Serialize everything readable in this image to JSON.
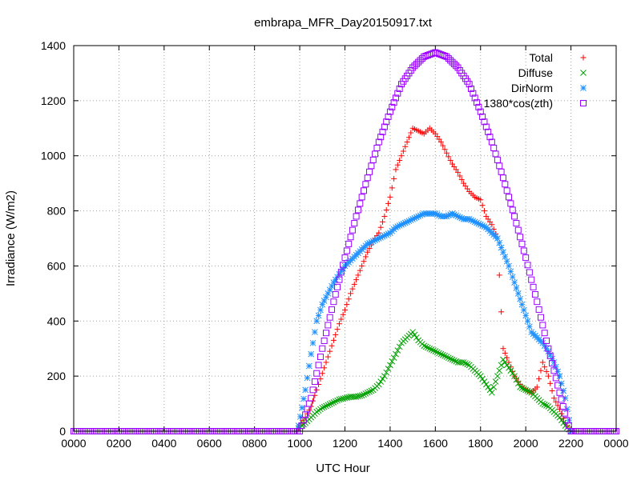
{
  "chart_data": {
    "type": "scatter",
    "title": "embrapa_MFR_Day20150917.txt",
    "xlabel": "UTC Hour",
    "ylabel": "Irradiance (W/m2)",
    "xlim": [
      0,
      24
    ],
    "ylim": [
      0,
      1400
    ],
    "grid": true,
    "legend_position": "top-right",
    "x_tick_values": [
      0,
      2,
      4,
      6,
      8,
      10,
      12,
      14,
      16,
      18,
      20,
      22,
      24
    ],
    "x_tick_labels": [
      "0000",
      "0200",
      "0400",
      "0600",
      "0800",
      "1000",
      "1200",
      "1400",
      "1600",
      "1800",
      "2000",
      "2200",
      "0000"
    ],
    "y_ticks": [
      0,
      200,
      400,
      600,
      800,
      1000,
      1200,
      1400
    ],
    "series": [
      {
        "name": "Total",
        "marker": "+",
        "color": "#ff0000",
        "x": [
          9.95,
          10.25,
          10.5,
          10.75,
          11.0,
          11.25,
          11.5,
          11.75,
          12.0,
          12.25,
          12.5,
          12.75,
          13.0,
          13.25,
          13.5,
          13.75,
          14.0,
          14.25,
          14.5,
          14.75,
          15.0,
          15.25,
          15.5,
          15.75,
          16.0,
          16.25,
          16.5,
          16.75,
          17.0,
          17.25,
          17.5,
          17.75,
          18.0,
          18.25,
          18.5,
          18.75,
          19.0,
          19.25,
          19.5,
          19.75,
          20.0,
          20.25,
          20.5,
          20.75,
          21.0,
          21.25,
          21.5,
          21.75,
          22.0
        ],
        "y": [
          10,
          50,
          90,
          150,
          210,
          270,
          330,
          390,
          440,
          500,
          550,
          600,
          650,
          690,
          720,
          780,
          850,
          950,
          1000,
          1050,
          1100,
          1090,
          1080,
          1100,
          1080,
          1050,
          1010,
          970,
          940,
          900,
          870,
          850,
          840,
          780,
          750,
          700,
          300,
          250,
          200,
          170,
          150,
          140,
          160,
          250,
          200,
          120,
          80,
          30,
          0
        ]
      },
      {
        "name": "Diffuse",
        "marker": "x",
        "color": "#00a000",
        "x": [
          9.95,
          10.25,
          10.5,
          10.75,
          11.0,
          11.25,
          11.5,
          11.75,
          12.0,
          12.25,
          12.5,
          12.75,
          13.0,
          13.25,
          13.5,
          13.75,
          14.0,
          14.25,
          14.5,
          14.75,
          15.0,
          15.25,
          15.5,
          15.75,
          16.0,
          16.25,
          16.5,
          16.75,
          17.0,
          17.25,
          17.5,
          17.75,
          18.0,
          18.25,
          18.5,
          18.75,
          19.0,
          19.25,
          19.5,
          19.75,
          20.0,
          20.25,
          20.5,
          20.75,
          21.0,
          21.25,
          21.5,
          21.75,
          22.0
        ],
        "y": [
          10,
          30,
          50,
          70,
          85,
          95,
          105,
          115,
          120,
          125,
          125,
          130,
          140,
          150,
          170,
          200,
          240,
          280,
          320,
          340,
          360,
          330,
          310,
          300,
          290,
          280,
          270,
          260,
          250,
          250,
          240,
          220,
          200,
          170,
          140,
          200,
          260,
          230,
          200,
          160,
          150,
          140,
          120,
          100,
          90,
          70,
          50,
          20,
          0
        ]
      },
      {
        "name": "DirNorm",
        "marker": "*",
        "color": "#1e90ff",
        "x": [
          9.95,
          10.25,
          10.5,
          10.75,
          11.0,
          11.25,
          11.5,
          11.75,
          12.0,
          12.25,
          12.5,
          12.75,
          13.0,
          13.25,
          13.5,
          13.75,
          14.0,
          14.25,
          14.5,
          14.75,
          15.0,
          15.25,
          15.5,
          15.75,
          16.0,
          16.25,
          16.5,
          16.75,
          17.0,
          17.25,
          17.5,
          17.75,
          18.0,
          18.25,
          18.5,
          18.75,
          19.0,
          19.25,
          19.5,
          19.75,
          20.0,
          20.25,
          20.5,
          20.75,
          21.0,
          21.25,
          21.5,
          21.75,
          22.0
        ],
        "y": [
          20,
          150,
          280,
          400,
          460,
          500,
          540,
          570,
          600,
          620,
          640,
          660,
          680,
          690,
          700,
          710,
          720,
          740,
          750,
          760,
          770,
          780,
          790,
          790,
          790,
          780,
          780,
          790,
          780,
          770,
          770,
          760,
          750,
          740,
          720,
          700,
          650,
          600,
          540,
          480,
          420,
          360,
          340,
          320,
          290,
          250,
          200,
          120,
          0
        ]
      },
      {
        "name": "1380*cos(zth)",
        "marker": "square",
        "color": "#9900ff",
        "x": [
          0,
          9.8,
          10.0,
          10.5,
          11.0,
          11.5,
          12.0,
          12.5,
          13.0,
          13.5,
          14.0,
          14.5,
          15.0,
          15.5,
          16.0,
          16.5,
          17.0,
          17.5,
          18.0,
          18.5,
          19.0,
          19.5,
          20.0,
          20.5,
          21.0,
          21.5,
          21.8,
          22.0,
          22.2,
          24.0
        ],
        "y": [
          0,
          0,
          0,
          120,
          300,
          470,
          630,
          780,
          920,
          1050,
          1160,
          1260,
          1320,
          1360,
          1375,
          1360,
          1320,
          1260,
          1160,
          1050,
          920,
          780,
          630,
          470,
          300,
          140,
          40,
          0,
          0,
          0
        ]
      }
    ]
  }
}
